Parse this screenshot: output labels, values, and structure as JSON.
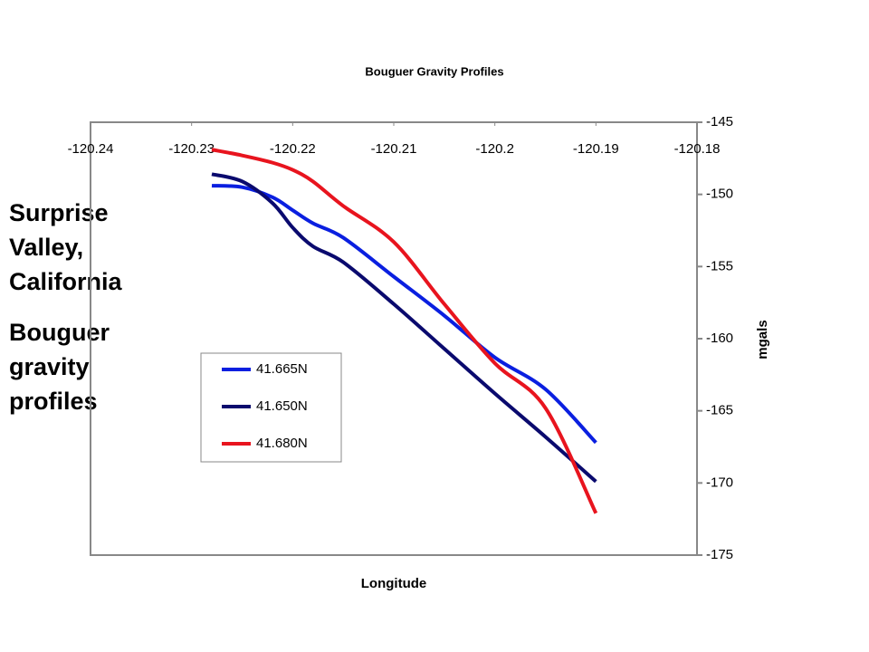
{
  "chart_data": {
    "type": "line",
    "title": "Bouguer Gravity Profiles",
    "xlabel": "Longitude",
    "ylabel": "mgals",
    "annotations": [
      "Surprise Valley, California",
      "Bouguer gravity profiles"
    ],
    "x": [
      -120.228,
      -120.225,
      -120.222,
      -120.22,
      -120.218,
      -120.215,
      -120.21,
      -120.205,
      -120.2,
      -120.195,
      -120.19
    ],
    "series": [
      {
        "name": "41.665N",
        "color": "#0a1fe0",
        "values": [
          -149.4,
          -149.5,
          -150.2,
          -151.1,
          -152.0,
          -153.0,
          -155.7,
          -158.4,
          -161.3,
          -163.5,
          -167.2
        ]
      },
      {
        "name": "41.650N",
        "color": "#0a0a6e",
        "values": [
          -148.6,
          -149.1,
          -150.6,
          -152.3,
          -153.6,
          -154.7,
          -157.6,
          -160.7,
          -163.8,
          -166.8,
          -169.9
        ]
      },
      {
        "name": "41.680N",
        "color": "#e8141e",
        "values": [
          -146.9,
          -147.3,
          -147.8,
          -148.3,
          -149.1,
          -150.8,
          -153.3,
          -157.6,
          -161.7,
          -164.8,
          -172.1
        ]
      }
    ],
    "xlim": [
      -120.24,
      -120.18
    ],
    "xticks": [
      -120.24,
      -120.23,
      -120.22,
      -120.21,
      -120.2,
      -120.19,
      -120.18
    ],
    "ylim": [
      -175,
      -145
    ],
    "yticks": [
      -145,
      -150,
      -155,
      -160,
      -165,
      -170,
      -175
    ]
  }
}
